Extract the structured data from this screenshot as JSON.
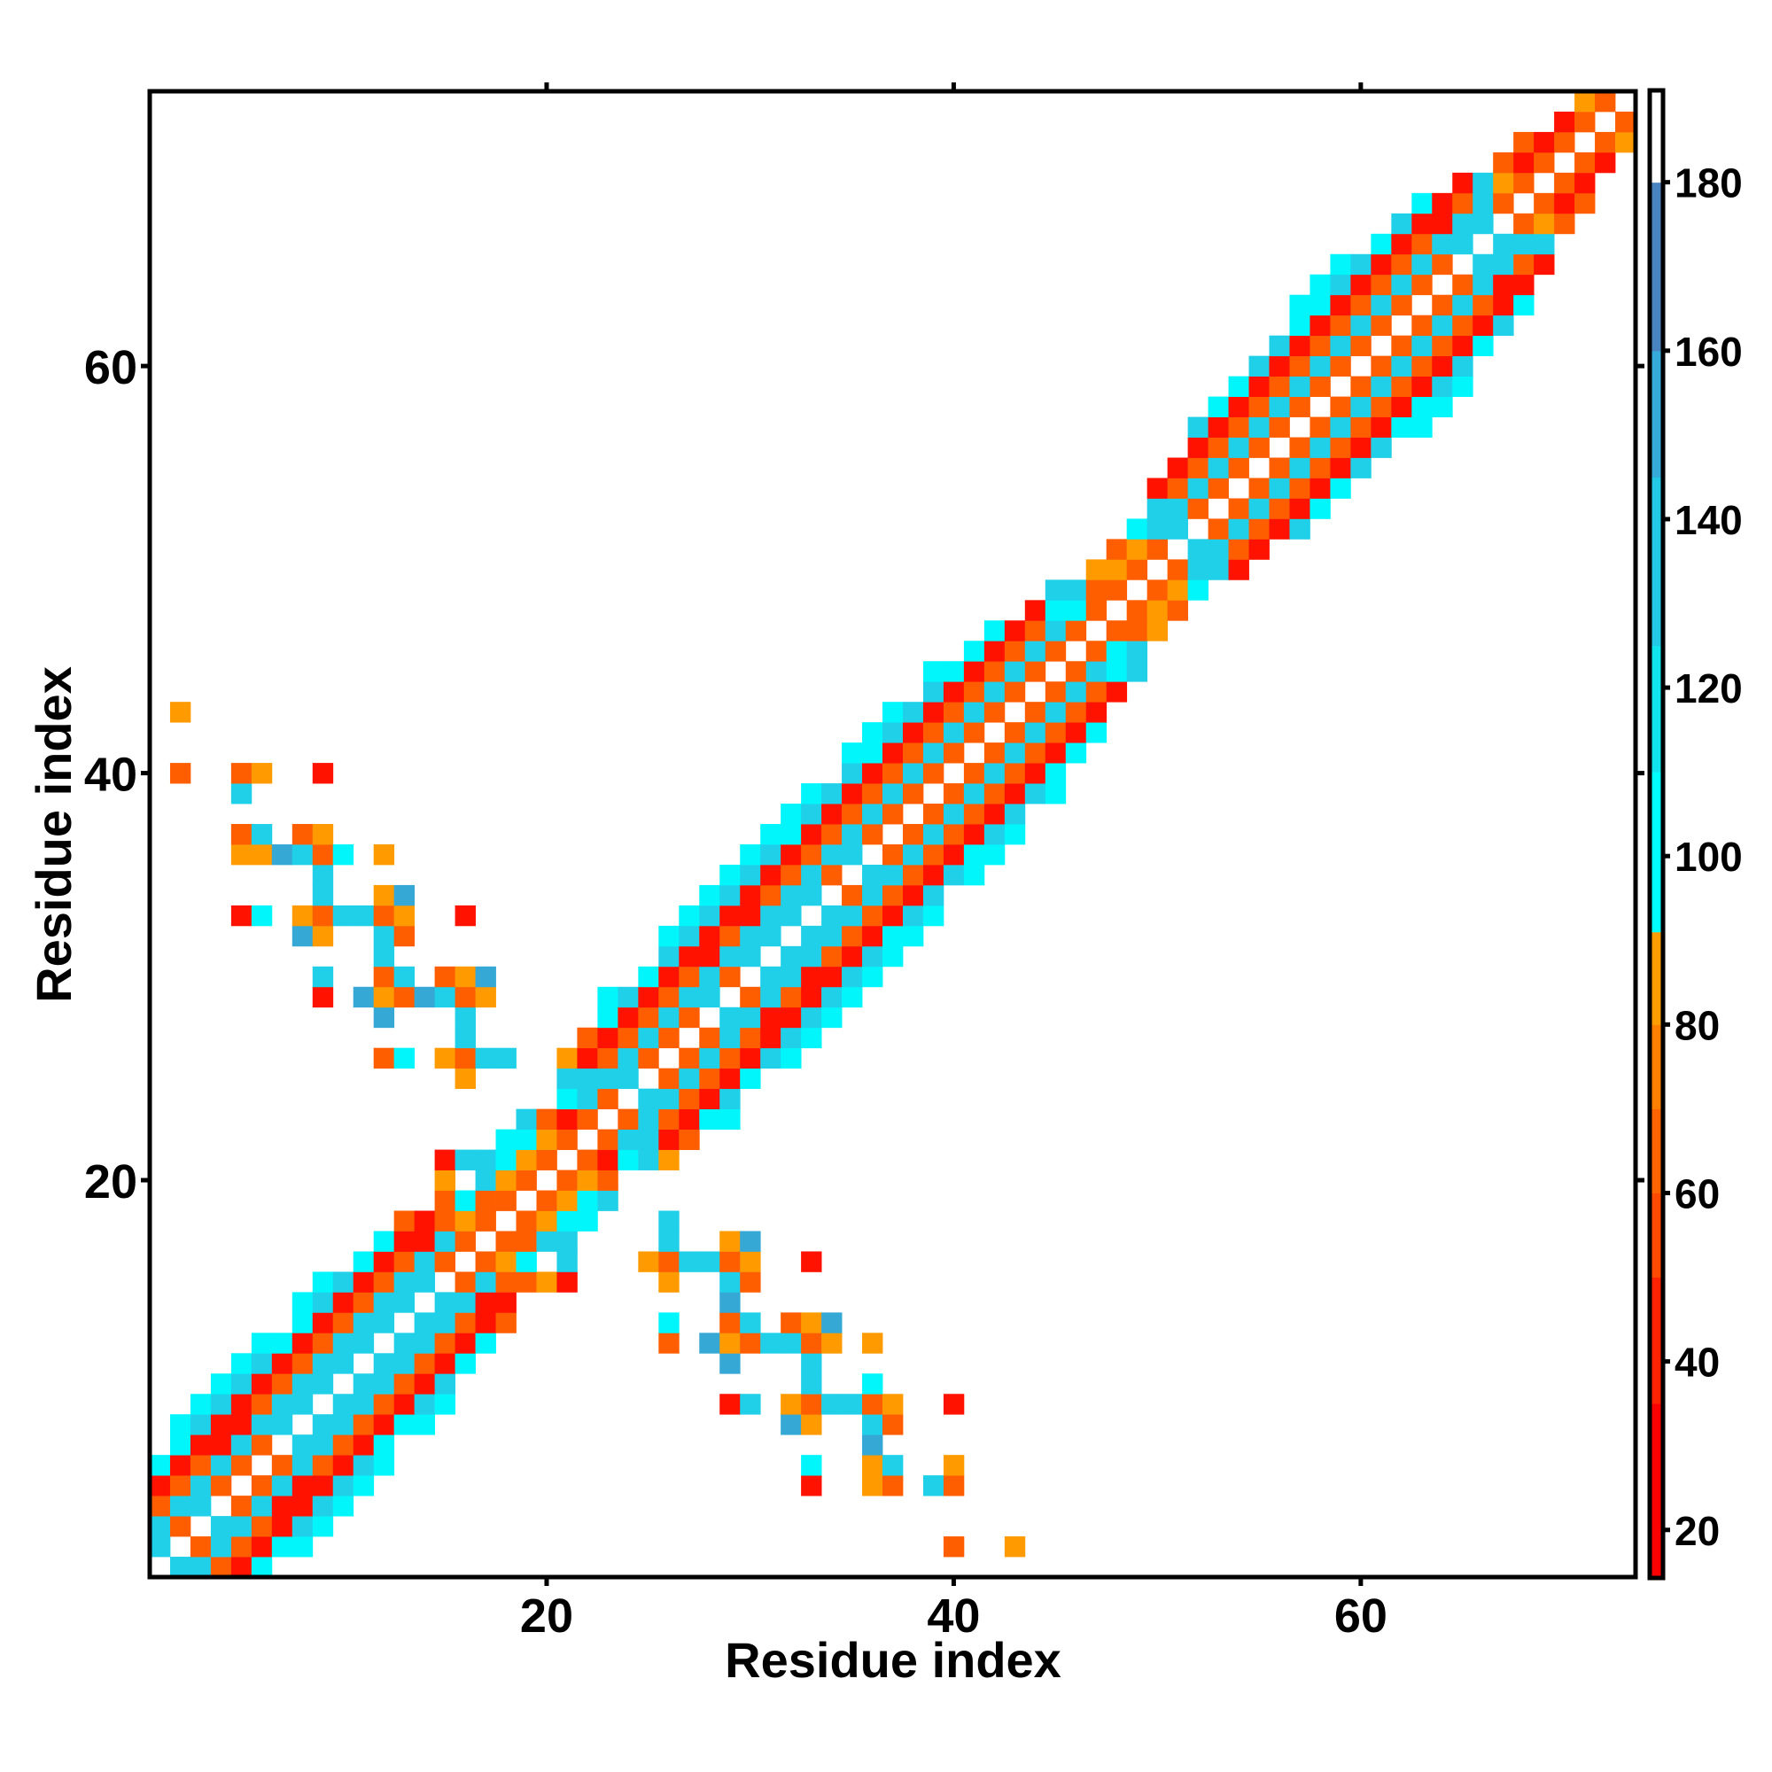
{
  "chart_data": {
    "type": "heatmap",
    "title": "",
    "xlabel": "Residue index",
    "ylabel": "Residue index",
    "n_residues": 73,
    "xlim": [
      0.5,
      73.5
    ],
    "ylim": [
      0.5,
      73.5
    ],
    "xticks": [
      20,
      40,
      60
    ],
    "yticks": [
      20,
      40,
      60
    ],
    "xtick_labels": [
      "20",
      "40",
      "60"
    ],
    "ytick_labels": [
      "20",
      "40",
      "60"
    ],
    "symmetric": true,
    "grid": false,
    "colorbar": {
      "position": "right",
      "range": [
        14.4,
        190.8
      ],
      "ticks": [
        20,
        40,
        60,
        80,
        100,
        120,
        140,
        160,
        180
      ],
      "tick_labels": [
        "20",
        "40",
        "60",
        "80",
        "100",
        "120",
        "140",
        "160",
        "180"
      ],
      "stops": [
        {
          "from": 14.4,
          "to": 35,
          "color": "#ff0000"
        },
        {
          "from": 35,
          "to": 50,
          "color": "#ff2200"
        },
        {
          "from": 50,
          "to": 60,
          "color": "#ff4a00"
        },
        {
          "from": 60,
          "to": 70,
          "color": "#ff6400"
        },
        {
          "from": 70,
          "to": 80,
          "color": "#ff8000"
        },
        {
          "from": 80,
          "to": 91,
          "color": "#ff9c00"
        },
        {
          "from": 91,
          "to": 110,
          "color": "#00ffff"
        },
        {
          "from": 110,
          "to": 125,
          "color": "#12e4ee"
        },
        {
          "from": 125,
          "to": 145,
          "color": "#22c8e4"
        },
        {
          "from": 145,
          "to": 160,
          "color": "#36aad8"
        },
        {
          "from": 160,
          "to": 180,
          "color": "#4a84c0"
        },
        {
          "from": 180,
          "to": 190.8,
          "color": "#ffffff"
        }
      ]
    },
    "value_codes": {
      ".": {
        "value": 185,
        "color": "#ffffff"
      },
      "R": {
        "value": 30,
        "color": "#ff1200"
      },
      "O": {
        "value": 55,
        "color": "#ff5e00"
      },
      "Y": {
        "value": 80,
        "color": "#ff9a00"
      },
      "C": {
        "value": 100,
        "color": "#00f6fb"
      },
      "B": {
        "value": 125,
        "color": "#20d0e8"
      },
      "S": {
        "value": 150,
        "color": "#36a8d6"
      }
    },
    "upper_triangle_rows": [
      ".BBORC",
      ".OBORCC",
      ".BBORBC",
      ".OBRRBC",
      ".OBRRBC",
      ".OBORBC",
      ".BBORC",
      ".BBORCC",
      ".BBORBC",
      ".BBORB",
      ".BBORC",
      ".BBORC",
      ".BBORO",
      ".BBRR",
      ".OBOOYR",
      ".OYC.B",
      ".OOBB",
      ".OYCC",
      ".OYCB",
      ".OYO",
      ".ORCBY",
      ".OBBRO",
      ".OBORCC",
      ".BBORB",
      ".OBORC",
      ".OBORBC",
      ".OBORBC",
      ".BBRRBC",
      ".OBORBC",
      ".BBRRBC",
      ".BBORBC",
      ".BBORCC",
      ".BBORBC",
      ".OBORB",
      ".BBORBC",
      ".OBORCC",
      ".OBORBC",
      ".OBORB",
      ".OBORBC",
      ".OBORC",
      ".OBORC",
      ".OBORC",
      ".OBOR",
      ".OBOR",
      ".OBCB",
      ".OCB",
      ".OOY",
      ".OYO",
      ".OYC",
      ".OBBR",
      ".BBOR",
      ".OBORB",
      ".OBORC",
      ".OBORC",
      ".OBORB",
      ".OBORB",
      ".OBORCC",
      ".OBORCC",
      ".OBORBC",
      ".OBORB",
      ".OBORC",
      ".OBORB",
      ".OBORC",
      ".OBRR",
      ".BBOR",
      ".BBB",
      ".OYO",
      ".ORO",
      ".OR",
      ".OR",
      ".OY",
      ".O",
      "."
    ],
    "off_diagonal_cells": [
      [
        2,
        40,
        "O"
      ],
      [
        2,
        43,
        "Y"
      ],
      [
        5,
        33,
        "R"
      ],
      [
        5,
        36,
        "Y"
      ],
      [
        5,
        37,
        "O"
      ],
      [
        5,
        39,
        "B"
      ],
      [
        5,
        40,
        "O"
      ],
      [
        6,
        33,
        "C"
      ],
      [
        6,
        36,
        "Y"
      ],
      [
        6,
        37,
        "B"
      ],
      [
        6,
        40,
        "Y"
      ],
      [
        7,
        36,
        "S"
      ],
      [
        8,
        32,
        "S"
      ],
      [
        8,
        33,
        "Y"
      ],
      [
        8,
        36,
        "B"
      ],
      [
        8,
        37,
        "O"
      ],
      [
        9,
        29,
        "R"
      ],
      [
        9,
        30,
        "B"
      ],
      [
        9,
        32,
        "Y"
      ],
      [
        9,
        33,
        "O"
      ],
      [
        9,
        34,
        "B"
      ],
      [
        9,
        35,
        "B"
      ],
      [
        9,
        36,
        "O"
      ],
      [
        9,
        37,
        "Y"
      ],
      [
        9,
        40,
        "R"
      ],
      [
        10,
        33,
        "B"
      ],
      [
        10,
        36,
        "C"
      ],
      [
        11,
        29,
        "S"
      ],
      [
        11,
        33,
        "B"
      ],
      [
        12,
        26,
        "O"
      ],
      [
        12,
        28,
        "S"
      ],
      [
        12,
        29,
        "Y"
      ],
      [
        12,
        30,
        "O"
      ],
      [
        12,
        31,
        "B"
      ],
      [
        12,
        32,
        "B"
      ],
      [
        12,
        33,
        "O"
      ],
      [
        12,
        34,
        "Y"
      ],
      [
        12,
        36,
        "Y"
      ],
      [
        13,
        26,
        "C"
      ],
      [
        13,
        29,
        "O"
      ],
      [
        13,
        30,
        "B"
      ],
      [
        13,
        32,
        "O"
      ],
      [
        13,
        33,
        "Y"
      ],
      [
        13,
        34,
        "S"
      ],
      [
        14,
        29,
        "S"
      ],
      [
        15,
        26,
        "Y"
      ],
      [
        15,
        29,
        "B"
      ],
      [
        15,
        30,
        "O"
      ],
      [
        16,
        25,
        "Y"
      ],
      [
        16,
        26,
        "O"
      ],
      [
        16,
        27,
        "B"
      ],
      [
        16,
        28,
        "B"
      ],
      [
        16,
        29,
        "O"
      ],
      [
        16,
        30,
        "Y"
      ],
      [
        16,
        33,
        "R"
      ],
      [
        17,
        26,
        "B"
      ],
      [
        17,
        29,
        "Y"
      ],
      [
        17,
        30,
        "S"
      ],
      [
        18,
        26,
        "B"
      ]
    ]
  }
}
